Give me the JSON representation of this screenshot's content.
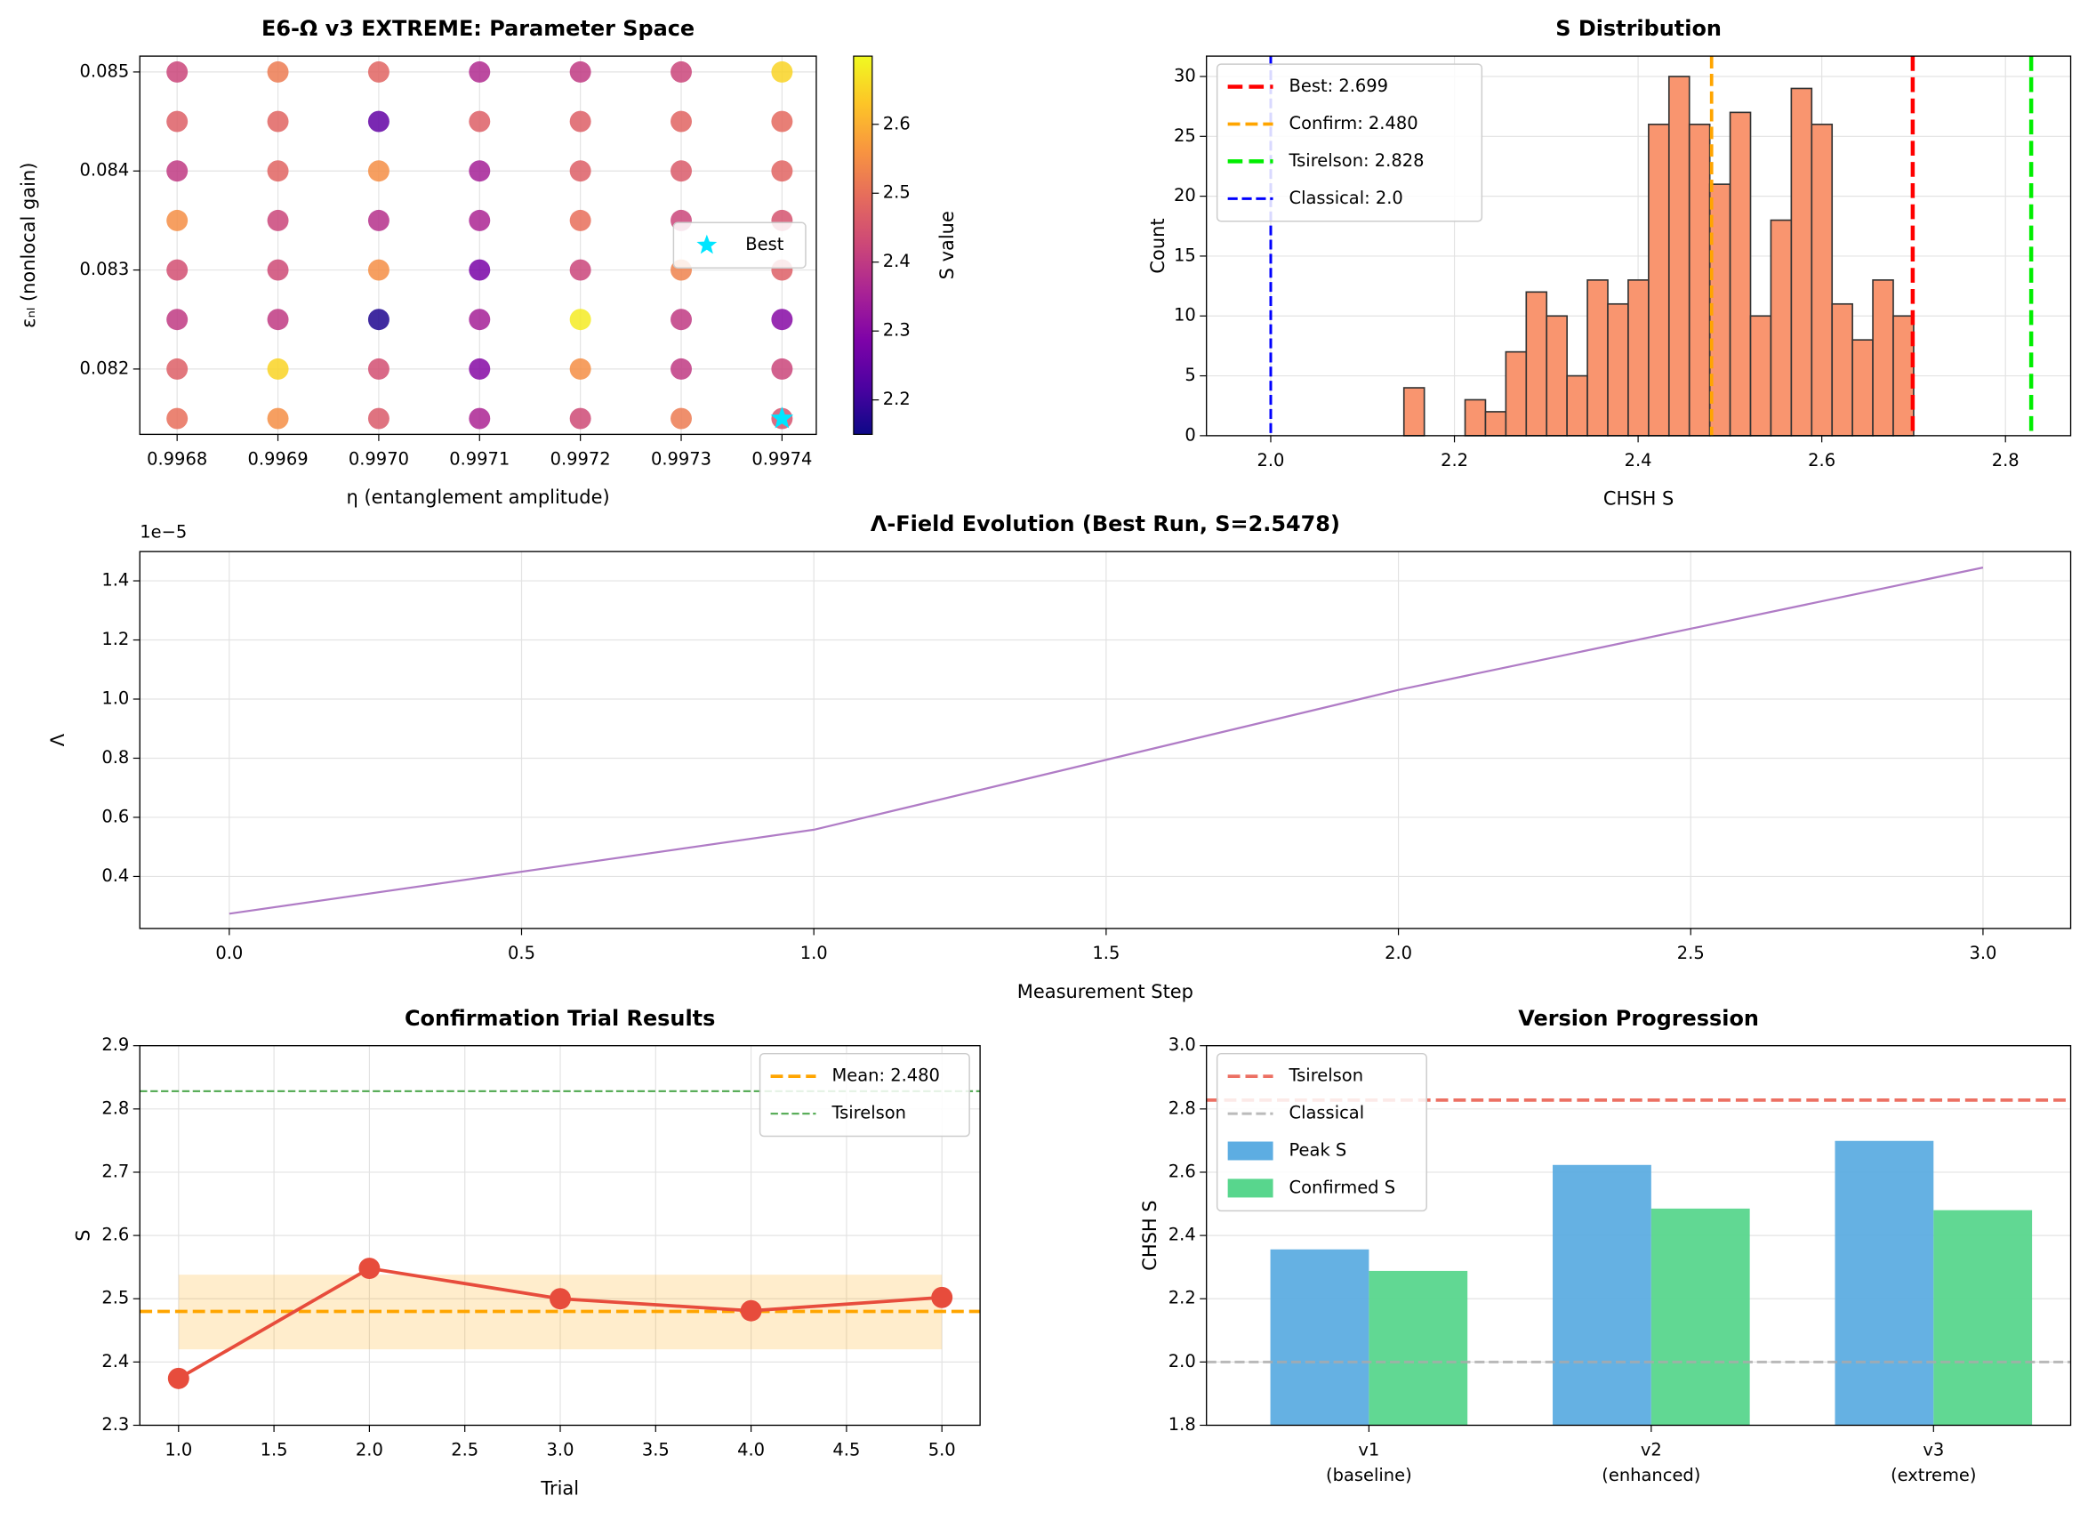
{
  "chart_data": [
    {
      "type": "scatter",
      "title": "E6-Ω v3 EXTREME: Parameter Space",
      "xlabel": "η (entanglement amplitude)",
      "ylabel": "εₙₗ (nonlocal gain)",
      "x": [
        0.9968,
        0.9969,
        0.997,
        0.9971,
        0.9972,
        0.9973,
        0.9974
      ],
      "y": [
        0.0815,
        0.082,
        0.0825,
        0.083,
        0.0835,
        0.084,
        0.0845,
        0.085
      ],
      "values": [
        [
          2.5,
          2.55,
          2.46,
          2.36,
          2.43,
          2.52,
          2.45
        ],
        [
          2.47,
          2.65,
          2.44,
          2.3,
          2.55,
          2.4,
          2.42
        ],
        [
          2.4,
          2.4,
          2.17,
          2.35,
          2.68,
          2.4,
          2.3
        ],
        [
          2.44,
          2.43,
          2.55,
          2.28,
          2.42,
          2.53,
          2.47
        ],
        [
          2.55,
          2.42,
          2.38,
          2.36,
          2.5,
          2.42,
          2.45
        ],
        [
          2.4,
          2.48,
          2.55,
          2.35,
          2.47,
          2.46,
          2.48
        ],
        [
          2.47,
          2.48,
          2.25,
          2.47,
          2.47,
          2.48,
          2.49
        ],
        [
          2.42,
          2.52,
          2.48,
          2.37,
          2.4,
          2.42,
          2.65
        ]
      ],
      "colormap": "plasma",
      "clim": [
        2.15,
        2.699
      ],
      "colorbar_label": "S value",
      "colorbar_ticks": [
        2.2,
        2.3,
        2.4,
        2.5,
        2.6
      ],
      "best": {
        "name": "Best",
        "x": [
          0.9974
        ],
        "y": [
          0.0815
        ],
        "color": "#00e5ff",
        "marker": "star"
      },
      "xlim": [
        0.996763,
        0.997434
      ],
      "xticks": [
        0.9968,
        0.9969,
        {
          "value": 0.997,
          "label": "0.9970"
        },
        0.9971,
        0.9972,
        0.9973,
        0.9974
      ],
      "ylim": [
        0.08134,
        0.08516
      ],
      "yticks": [
        0.082,
        0.083,
        0.084,
        0.085
      ],
      "grid": true,
      "legend": "center right"
    },
    {
      "type": "histogram",
      "title": "S Distribution",
      "xlabel": "CHSH S",
      "ylabel": "Count",
      "bins": [
        2.145,
        2.1672,
        2.1894,
        2.2116,
        2.2338,
        2.256,
        2.2782,
        2.3004,
        2.3226,
        2.3448,
        2.367,
        2.3892,
        2.4114,
        2.4336,
        2.4558,
        2.478,
        2.5002,
        2.5224,
        2.5446,
        2.5668,
        2.589,
        2.6112,
        2.6334,
        2.6556,
        2.6778,
        2.7
      ],
      "counts": [
        4,
        0,
        0,
        3,
        2,
        7,
        12,
        10,
        5,
        13,
        11,
        13,
        26,
        30,
        26,
        21,
        27,
        10,
        18,
        29,
        26,
        11,
        8,
        13,
        10
      ],
      "color": "#f9956f",
      "edgecolor": "#333333",
      "vlines": [
        {
          "label": "Best: 2.699",
          "value": 2.699,
          "color": "#ff0000",
          "linestyle": "dashed",
          "linewidth": 3
        },
        {
          "label": "Confirm: 2.480",
          "value": 2.48,
          "color": "#ffa500",
          "linestyle": "dashed",
          "linewidth": 2.5
        },
        {
          "label": "Tsirelson: 2.828",
          "value": 2.828,
          "color": "#00ee00",
          "linestyle": "dashed",
          "linewidth": 3
        },
        {
          "label": "Classical: 2.0",
          "value": 2,
          "color": "#0000ff",
          "linestyle": "dashed",
          "linewidth": 2
        }
      ],
      "xlim": [
        1.93,
        2.871
      ],
      "xticks": [
        {
          "value": 2,
          "label": "2.0"
        },
        2.2,
        2.4,
        2.6,
        2.8
      ],
      "ylim": [
        0,
        31.7
      ],
      "yticks": [
        0,
        5,
        10,
        15,
        20,
        25,
        30
      ],
      "grid": true,
      "legend": "upper left"
    },
    {
      "type": "line",
      "title": "Λ-Field Evolution (Best Run, S=2.5478)",
      "xlabel": "Measurement Step",
      "ylabel": "Λ",
      "offset_label": "1e−5",
      "x": [
        0,
        1,
        2,
        3
      ],
      "series": [
        {
          "values": [
            0.274,
            0.558,
            1.031,
            1.445
          ],
          "color": "#b07cc6",
          "linewidth": 1.5
        }
      ],
      "xlim": [
        -0.153,
        3.15
      ],
      "xticks": [
        {
          "value": 0,
          "label": "0.0"
        },
        0.5,
        {
          "value": 1,
          "label": "1.0"
        },
        1.5,
        {
          "value": 2,
          "label": "2.0"
        },
        2.5,
        {
          "value": 3,
          "label": "3.0"
        }
      ],
      "ylim": [
        0.224,
        1.499
      ],
      "yticks": [
        0.4,
        0.6,
        0.8,
        {
          "value": 1,
          "label": "1.0"
        },
        1.2,
        1.4
      ],
      "grid": true
    },
    {
      "type": "line",
      "title": "Confirmation Trial Results",
      "xlabel": "Trial",
      "ylabel": "S",
      "x": [
        1,
        2,
        3,
        4,
        5
      ],
      "series": [
        {
          "values": [
            2.374,
            2.548,
            2.5,
            2.481,
            2.502
          ],
          "color": "#e74c3c",
          "linewidth": 2.5,
          "marker": "circle"
        }
      ],
      "band": {
        "lower": 2.42,
        "upper": 2.538,
        "color": "#ffa500"
      },
      "hlines": [
        {
          "label": "Mean: 2.480",
          "value": 2.48,
          "color": "#ffa500",
          "linestyle": "dashed",
          "linewidth": 2.5
        },
        {
          "label": "Tsirelson",
          "value": 2.828,
          "color": "#5aae5a",
          "linestyle": "dashed",
          "linewidth": 1.5
        }
      ],
      "xlim": [
        0.797,
        5.2
      ],
      "xticks": [
        {
          "value": 1,
          "label": "1.0"
        },
        1.5,
        {
          "value": 2,
          "label": "2.0"
        },
        2.5,
        {
          "value": 3,
          "label": "3.0"
        },
        3.5,
        {
          "value": 4,
          "label": "4.0"
        },
        4.5,
        {
          "value": 5,
          "label": "5.0"
        }
      ],
      "ylim": [
        2.3,
        2.9
      ],
      "yticks": [
        2.3,
        2.4,
        2.5,
        2.6,
        2.7,
        2.8,
        2.9
      ],
      "grid": true,
      "legend": "upper right"
    },
    {
      "type": "bar",
      "title": "Version Progression",
      "ylabel": "CHSH S",
      "categories": [
        [
          "v1",
          "(baseline)"
        ],
        [
          "v2",
          "(enhanced)"
        ],
        [
          "v3",
          "(extreme)"
        ]
      ],
      "series": [
        {
          "name": "Peak S",
          "color": "#5dade2",
          "values": [
            2.356,
            2.623,
            2.699
          ]
        },
        {
          "name": "Confirmed S",
          "color": "#58d68d",
          "values": [
            2.288,
            2.485,
            2.48
          ]
        }
      ],
      "hlines": [
        {
          "label": "Tsirelson",
          "value": 2.828,
          "color": "#e74c3c",
          "linestyle": "dashed",
          "linewidth": 2.5
        },
        {
          "label": "Classical",
          "value": 2,
          "color": "#aaaaaa",
          "linestyle": "dashed",
          "linewidth": 2
        }
      ],
      "ylim": [
        1.8,
        3
      ],
      "yticks": [
        1.8,
        {
          "value": 2,
          "label": "2.0"
        },
        2.2,
        2.4,
        2.6,
        2.8,
        {
          "value": 3,
          "label": "3.0"
        }
      ],
      "grid": true,
      "legend": "upper left"
    }
  ]
}
